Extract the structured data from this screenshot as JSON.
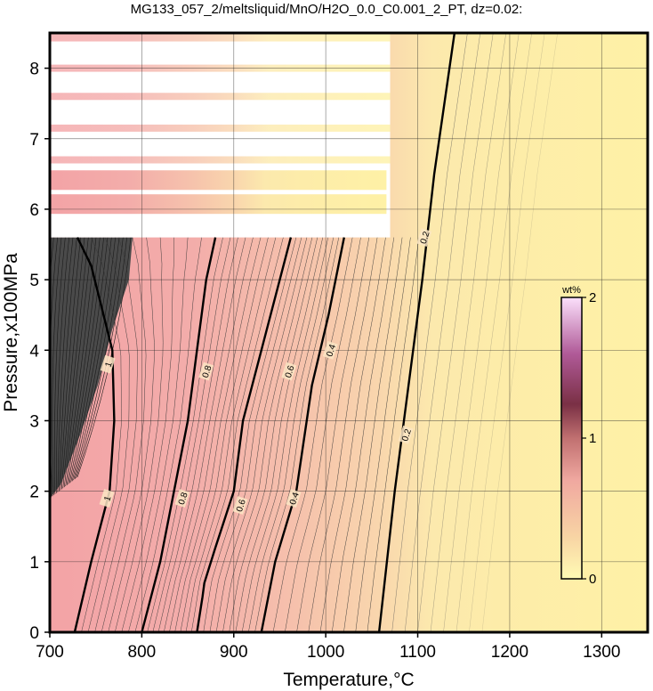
{
  "chart_data": {
    "type": "heatmap",
    "title": "MG133_057_2/meltsliquid/MnO/H2O_0.0_C0.001_2_PT, dz=0.02:",
    "xlabel": "Temperature,°C",
    "ylabel": "Pressure,x100MPa",
    "xlim": [
      700,
      1350
    ],
    "ylim": [
      0,
      8.5
    ],
    "x_ticks": [
      700,
      800,
      900,
      1000,
      1100,
      1200,
      1300
    ],
    "y_ticks": [
      0,
      1,
      2,
      3,
      4,
      5,
      6,
      7,
      8
    ],
    "grid": true,
    "colorbar": {
      "unit": "wt%",
      "range": [
        0,
        2
      ],
      "ticks": [
        0,
        1,
        2
      ],
      "colors": [
        "#fffbb4",
        "#fbe0a0",
        "#f7bca0",
        "#f0a0a0",
        "#d98aa0",
        "#a86080",
        "#7a3050",
        "#b05090",
        "#f0c0f0"
      ]
    },
    "contour_interval": 0.02,
    "major_contours": [
      {
        "level": 0.2,
        "label": "0.2",
        "points": [
          [
            1058,
            0
          ],
          [
            1075,
            2.0
          ],
          [
            1090,
            3.5
          ],
          [
            1105,
            5.0
          ],
          [
            1118,
            6.5
          ],
          [
            1140,
            8.5
          ]
        ]
      },
      {
        "level": 0.4,
        "label": "0.4",
        "points": [
          [
            930,
            0
          ],
          [
            945,
            1.0
          ],
          [
            968,
            2.0
          ],
          [
            985,
            3.5
          ],
          [
            1003,
            4.5
          ],
          [
            1020,
            5.6
          ]
        ]
      },
      {
        "level": 0.6,
        "label": "0.6",
        "points": [
          [
            860,
            0
          ],
          [
            866,
            0.5
          ],
          [
            868,
            0.7
          ],
          [
            880,
            1.2
          ],
          [
            900,
            2.0
          ],
          [
            910,
            3.0
          ],
          [
            930,
            4.0
          ],
          [
            950,
            5.0
          ],
          [
            962,
            5.6
          ]
        ]
      },
      {
        "level": 0.8,
        "label": "0.8",
        "points": [
          [
            800,
            0
          ],
          [
            820,
            1.0
          ],
          [
            835,
            2.0
          ],
          [
            850,
            3.0
          ],
          [
            860,
            4.0
          ],
          [
            870,
            5.0
          ],
          [
            880,
            5.6
          ]
        ]
      },
      {
        "level": 1.0,
        "label": "1",
        "points": [
          [
            727,
            0
          ],
          [
            745,
            1.0
          ],
          [
            765,
            2.0
          ],
          [
            770,
            3.0
          ],
          [
            768,
            4.0
          ],
          [
            745,
            5.2
          ],
          [
            730,
            5.6
          ]
        ]
      }
    ],
    "label_positions": [
      {
        "text": "0.2",
        "x": 1107,
        "y": 5.6
      },
      {
        "text": "0.2",
        "x": 1087,
        "y": 2.8
      },
      {
        "text": "0.4",
        "x": 1005,
        "y": 4.0
      },
      {
        "text": "0.4",
        "x": 965,
        "y": 1.9
      },
      {
        "text": "0.6",
        "x": 960,
        "y": 3.7
      },
      {
        "text": "0.6",
        "x": 907,
        "y": 1.8
      },
      {
        "text": "0.8",
        "x": 870,
        "y": 3.7
      },
      {
        "text": "0.8",
        "x": 844,
        "y": 1.9
      },
      {
        "text": "1",
        "x": 763,
        "y": 3.8
      },
      {
        "text": "1",
        "x": 762,
        "y": 1.9
      }
    ],
    "unsampled_rows_pressure": [
      8.43,
      8.0,
      7.6,
      7.15,
      6.7
    ],
    "sampled_rows_pressure": [
      6.4,
      6.06
    ],
    "unsampled_tmax": 1070
  }
}
